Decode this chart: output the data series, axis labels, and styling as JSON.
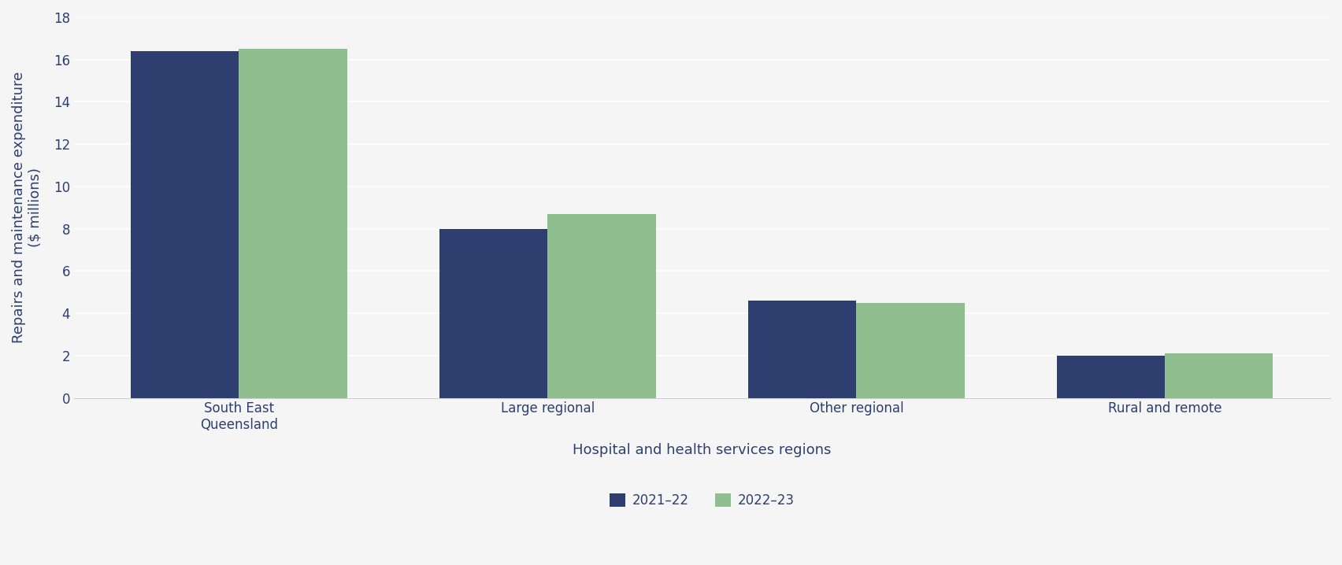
{
  "categories": [
    "South East\nQueensland",
    "Large regional",
    "Other regional",
    "Rural and remote"
  ],
  "values_2021_22": [
    16.4,
    8.0,
    4.6,
    2.0
  ],
  "values_2022_23": [
    16.5,
    8.7,
    4.5,
    2.1
  ],
  "color_2021_22": "#2E3F6F",
  "color_2022_23": "#8FBF8F",
  "ylabel_line1": "Repairs and maintenance expenditure",
  "ylabel_line2": "($ millions)",
  "xlabel": "Hospital and health services regions",
  "legend_label_1": "2021–22",
  "legend_label_2": "2022–23",
  "ylim": [
    0,
    18
  ],
  "yticks": [
    0,
    2,
    4,
    6,
    8,
    10,
    12,
    14,
    16,
    18
  ],
  "bar_width": 0.35,
  "background_color": "#f5f5f5",
  "axis_label_color": "#2E3F6F",
  "tick_label_color": "#2E3F6F",
  "grid_color": "#ffffff",
  "axis_label_fontsize": 13,
  "tick_label_fontsize": 12,
  "legend_fontsize": 12
}
